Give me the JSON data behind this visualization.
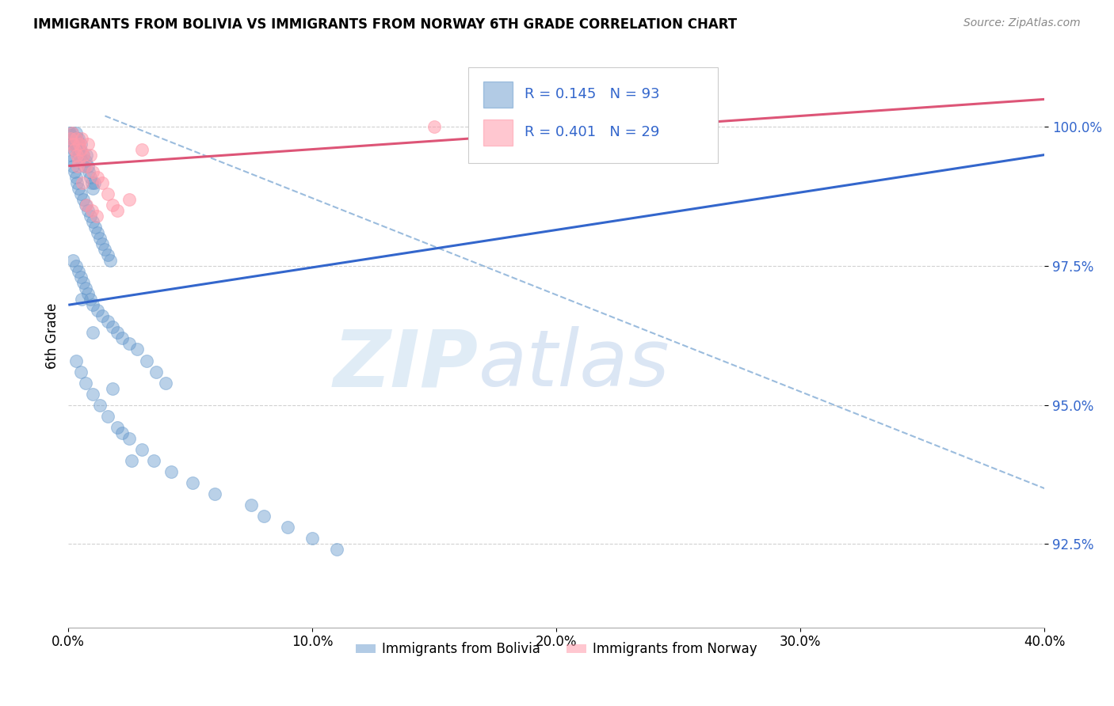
{
  "title": "IMMIGRANTS FROM BOLIVIA VS IMMIGRANTS FROM NORWAY 6TH GRADE CORRELATION CHART",
  "source": "Source: ZipAtlas.com",
  "ylabel": "6th Grade",
  "xlim": [
    0.0,
    40.0
  ],
  "ylim": [
    91.0,
    101.5
  ],
  "yticks": [
    92.5,
    95.0,
    97.5,
    100.0
  ],
  "ytick_labels": [
    "92.5%",
    "95.0%",
    "97.5%",
    "100.0%"
  ],
  "xticks": [
    0.0,
    10.0,
    20.0,
    30.0,
    40.0
  ],
  "xtick_labels": [
    "0.0%",
    "10.0%",
    "20.0%",
    "30.0%",
    "40.0%"
  ],
  "bolivia_color": "#6699cc",
  "norway_color": "#ff99aa",
  "bolivia_R": 0.145,
  "bolivia_N": 93,
  "norway_R": 0.401,
  "norway_N": 29,
  "legend_entries": [
    "Immigrants from Bolivia",
    "Immigrants from Norway"
  ],
  "watermark_zip": "ZIP",
  "watermark_atlas": "atlas",
  "bolivia_scatter_x": [
    0.05,
    0.08,
    0.1,
    0.12,
    0.15,
    0.18,
    0.2,
    0.22,
    0.25,
    0.28,
    0.3,
    0.32,
    0.35,
    0.38,
    0.4,
    0.42,
    0.45,
    0.48,
    0.5,
    0.55,
    0.6,
    0.65,
    0.7,
    0.75,
    0.8,
    0.85,
    0.9,
    0.95,
    1.0,
    1.05,
    0.1,
    0.15,
    0.2,
    0.25,
    0.3,
    0.35,
    0.4,
    0.5,
    0.6,
    0.7,
    0.8,
    0.9,
    1.0,
    1.1,
    1.2,
    1.3,
    1.4,
    1.5,
    1.6,
    1.7,
    0.2,
    0.3,
    0.4,
    0.5,
    0.6,
    0.7,
    0.8,
    0.9,
    1.0,
    1.2,
    1.4,
    1.6,
    1.8,
    2.0,
    2.2,
    2.5,
    2.8,
    3.2,
    3.6,
    4.0,
    0.3,
    0.5,
    0.7,
    1.0,
    1.3,
    1.6,
    2.0,
    2.5,
    3.0,
    3.5,
    4.2,
    5.1,
    6.0,
    7.5,
    8.0,
    9.0,
    10.0,
    11.0,
    1.8,
    2.2,
    2.6,
    1.0,
    0.55
  ],
  "bolivia_scatter_y": [
    99.9,
    99.85,
    99.8,
    99.75,
    99.9,
    99.7,
    99.8,
    99.6,
    99.7,
    99.8,
    99.9,
    99.7,
    99.8,
    99.6,
    99.7,
    99.8,
    99.5,
    99.6,
    99.7,
    99.4,
    99.5,
    99.3,
    99.4,
    99.5,
    99.3,
    99.2,
    99.1,
    99.0,
    98.9,
    99.0,
    99.5,
    99.4,
    99.3,
    99.2,
    99.1,
    99.0,
    98.9,
    98.8,
    98.7,
    98.6,
    98.5,
    98.4,
    98.3,
    98.2,
    98.1,
    98.0,
    97.9,
    97.8,
    97.7,
    97.6,
    97.6,
    97.5,
    97.4,
    97.3,
    97.2,
    97.1,
    97.0,
    96.9,
    96.8,
    96.7,
    96.6,
    96.5,
    96.4,
    96.3,
    96.2,
    96.1,
    96.0,
    95.8,
    95.6,
    95.4,
    95.8,
    95.6,
    95.4,
    95.2,
    95.0,
    94.8,
    94.6,
    94.4,
    94.2,
    94.0,
    93.8,
    93.6,
    93.4,
    93.2,
    93.0,
    92.8,
    92.6,
    92.4,
    95.3,
    94.5,
    94.0,
    96.3,
    96.9
  ],
  "norway_scatter_x": [
    0.1,
    0.15,
    0.2,
    0.25,
    0.3,
    0.35,
    0.4,
    0.45,
    0.5,
    0.55,
    0.6,
    0.7,
    0.8,
    0.9,
    1.0,
    1.2,
    1.4,
    1.6,
    1.8,
    2.0,
    2.5,
    3.0,
    0.38,
    0.58,
    0.75,
    0.95,
    1.15,
    15.0,
    25.0
  ],
  "norway_scatter_y": [
    99.8,
    99.9,
    99.7,
    99.6,
    99.8,
    99.5,
    99.4,
    99.7,
    99.6,
    99.8,
    99.5,
    99.3,
    99.7,
    99.5,
    99.2,
    99.1,
    99.0,
    98.8,
    98.6,
    98.5,
    98.7,
    99.6,
    99.3,
    99.0,
    98.6,
    98.5,
    98.4,
    100.0,
    100.0
  ],
  "blue_trend_x0": 0.0,
  "blue_trend_y0": 96.8,
  "blue_trend_x1": 40.0,
  "blue_trend_y1": 99.5,
  "pink_trend_x0": 0.0,
  "pink_trend_y0": 99.3,
  "pink_trend_x1": 40.0,
  "pink_trend_y1": 100.5,
  "dash_x0": 1.5,
  "dash_y0": 100.2,
  "dash_x1": 40.0,
  "dash_y1": 93.5
}
